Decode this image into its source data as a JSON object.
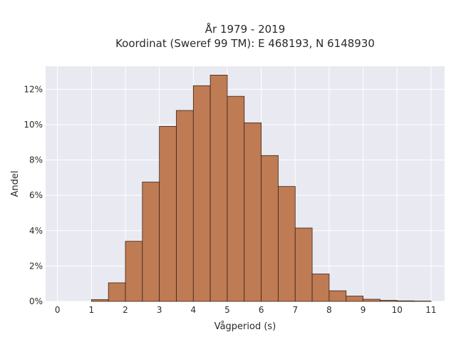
{
  "chart_data": {
    "type": "bar",
    "title_line1": "År 1979 - 2019",
    "title_line2": "Koordinat (Sweref 99 TM): E 468193, N 6148930",
    "xlabel": "Vågperiod (s)",
    "ylabel": "Andel",
    "xlim": [
      -0.35,
      11.4
    ],
    "ylim": [
      0,
      13.3
    ],
    "x_ticks": [
      0,
      1,
      2,
      3,
      4,
      5,
      6,
      7,
      8,
      9,
      10,
      11
    ],
    "x_tick_labels": [
      "0",
      "1",
      "2",
      "3",
      "4",
      "5",
      "6",
      "7",
      "8",
      "9",
      "10",
      "11"
    ],
    "y_ticks": [
      0,
      2,
      4,
      6,
      8,
      10,
      12
    ],
    "y_tick_labels": [
      "0%",
      "2%",
      "4%",
      "6%",
      "8%",
      "10%",
      "12%"
    ],
    "bin_width": 0.5,
    "bins": [
      {
        "x": 1.0,
        "value": 0.1
      },
      {
        "x": 1.5,
        "value": 1.05
      },
      {
        "x": 2.0,
        "value": 3.4
      },
      {
        "x": 2.5,
        "value": 6.75
      },
      {
        "x": 3.0,
        "value": 9.9
      },
      {
        "x": 3.5,
        "value": 10.8
      },
      {
        "x": 4.0,
        "value": 12.2
      },
      {
        "x": 4.5,
        "value": 12.8
      },
      {
        "x": 5.0,
        "value": 11.6
      },
      {
        "x": 5.5,
        "value": 10.1
      },
      {
        "x": 6.0,
        "value": 8.25
      },
      {
        "x": 6.5,
        "value": 6.5
      },
      {
        "x": 7.0,
        "value": 4.15
      },
      {
        "x": 7.5,
        "value": 1.55
      },
      {
        "x": 8.0,
        "value": 0.6
      },
      {
        "x": 8.5,
        "value": 0.3
      },
      {
        "x": 9.0,
        "value": 0.12
      },
      {
        "x": 9.5,
        "value": 0.06
      },
      {
        "x": 10.0,
        "value": 0.03
      },
      {
        "x": 10.5,
        "value": 0.02
      }
    ],
    "grid": true,
    "colors": {
      "bar_fill": "#bf7b53",
      "bar_edge": "#3b2418",
      "plot_background": "#e9e9f1",
      "grid": "#ffffff"
    }
  }
}
